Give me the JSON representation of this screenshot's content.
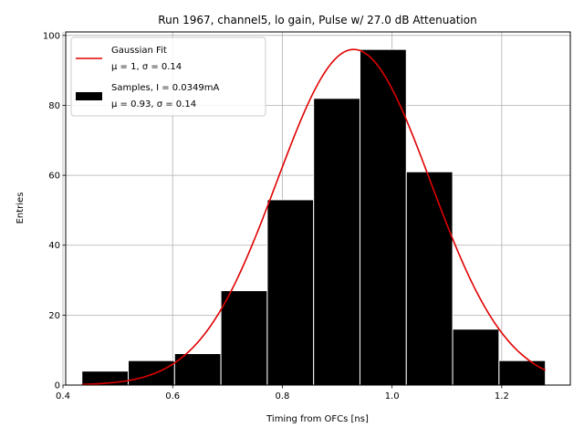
{
  "chart_data": {
    "type": "bar",
    "title": "Run 1967, channel5, lo gain, Pulse w/ 27.0 dB Attenuation",
    "xlabel": "Timing from OFCs [ns]",
    "ylabel": "Entries",
    "xlim": [
      0.405,
      1.325
    ],
    "ylim": [
      0,
      101
    ],
    "xticks": [
      "0.4",
      "0.6",
      "0.8",
      "1.0",
      "1.2"
    ],
    "yticks": [
      "0",
      "20",
      "40",
      "60",
      "80",
      "100"
    ],
    "grid": true,
    "legend_placement": "top-left",
    "histogram": {
      "bin_edges": [
        0.4345,
        0.519,
        0.6035,
        0.688,
        0.7725,
        0.857,
        0.9415,
        1.026,
        1.1105,
        1.195,
        1.2795
      ],
      "counts": [
        4,
        7,
        9,
        27,
        53,
        82,
        96,
        61,
        16,
        7
      ],
      "color": "#000000",
      "edge_color": "#ffffff"
    },
    "fit": {
      "mu": 0.93,
      "sigma": 0.14,
      "amplitude": 96,
      "x_range": [
        0.4345,
        1.2795
      ],
      "color": "#e00000"
    },
    "legend": [
      {
        "line1": "Gaussian Fit",
        "line2": "μ = 1, σ = 0.14"
      },
      {
        "line1": "Samples, I = 0.0349mA",
        "line2": "μ = 0.93, σ = 0.14"
      }
    ]
  }
}
